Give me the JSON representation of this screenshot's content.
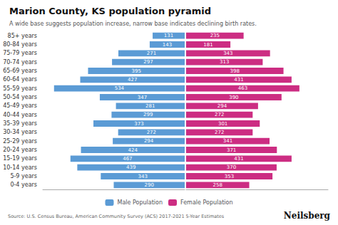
{
  "chart_data": {
    "type": "bar",
    "orientation": "horizontal",
    "title": "Marion County, KS population pyramid",
    "subtitle": "A wide base suggests population increase, narrow base indicates declining birth rates.",
    "source": "Source: U.S. Census Bureau, American Community Survey (ACS) 2017-2021 5-Year Estimates",
    "branding": "Neilsberg",
    "categories": [
      "0-4 years",
      "5-9 years",
      "10-14 years",
      "15-19 years",
      "20-24 years",
      "25-29 years",
      "30-34 years",
      "35-39 years",
      "40-44 years",
      "45-49 years",
      "50-54 years",
      "55-59 years",
      "60-64 years",
      "65-69 years",
      "70-74 years",
      "75-79 years",
      "80-84 years",
      "85+ years"
    ],
    "series": [
      {
        "name": "Male Population",
        "color": "#5b9bd5",
        "values": [
          290,
          343,
          439,
          467,
          424,
          294,
          272,
          373,
          299,
          281,
          347,
          534,
          427,
          395,
          297,
          271,
          143,
          131
        ]
      },
      {
        "name": "Female Population",
        "color": "#cc2d82",
        "values": [
          258,
          353,
          370,
          431,
          371,
          341,
          272,
          301,
          272,
          294,
          390,
          463,
          431,
          398,
          313,
          343,
          181,
          235
        ]
      }
    ],
    "xlim": [
      -580,
      580
    ],
    "data_labels": true,
    "tick_labels": "y",
    "grid": false,
    "legend": "bottom"
  }
}
